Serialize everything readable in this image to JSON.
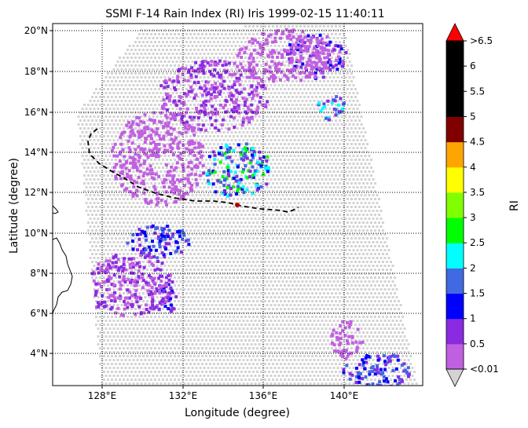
{
  "title": "SSMI F-14 Rain Index (RI) Iris 1999-02-15 11:40:11",
  "xlabel": "Longitude (degree)",
  "ylabel": "Latitude (degree)",
  "colorbar_label": "RI",
  "lon_ticks": [
    "128°E",
    "132°E",
    "136°E",
    "140°E"
  ],
  "lat_ticks": [
    "4°N",
    "6°N",
    "8°N",
    "10°N",
    "12°N",
    "14°N",
    "16°N",
    "18°N",
    "20°N"
  ],
  "colorbar_ticks": [
    "<0.01",
    "0.5",
    "1",
    "1.5",
    "2",
    "2.5",
    "3",
    "3.5",
    "4",
    "4.5",
    "5",
    "5.5",
    "6",
    ">6.5"
  ],
  "colorbar_colors": [
    "#c060e0",
    "#8a2be2",
    "#0000ff",
    "#4169e1",
    "#00ffff",
    "#00ff00",
    "#7fff00",
    "#ffff00",
    "#ffa500",
    "#800000",
    "#000000",
    "#000000",
    "#000000"
  ],
  "under_color": "#d3d3d3",
  "over_color": "#ff0000",
  "no_rain_color": "#d3d3d3",
  "track_color": "#000000",
  "storm_position_color": "#b00000",
  "grid": true
}
